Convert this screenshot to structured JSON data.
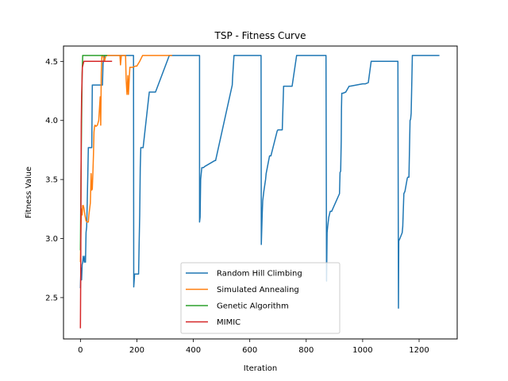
{
  "chart_data": {
    "type": "line",
    "title": "TSP - Fitness Curve",
    "xlabel": "Iteration",
    "ylabel": "Fitness Value",
    "xlim": [
      -60,
      1335
    ],
    "ylim": [
      2.15,
      4.63
    ],
    "xticks": [
      0,
      200,
      400,
      600,
      800,
      1000,
      1200
    ],
    "yticks": [
      2.5,
      3.0,
      3.5,
      4.0,
      4.5
    ],
    "xtick_labels": [
      "0",
      "200",
      "400",
      "600",
      "800",
      "1000",
      "1200"
    ],
    "ytick_labels": [
      "2.5",
      "3.0",
      "3.5",
      "4.0",
      "4.5"
    ],
    "grid": false,
    "legend_position": "lower center",
    "series": [
      {
        "name": "Random Hill Climbing",
        "color": "#1f77b4",
        "x": [
          0,
          2,
          4,
          6,
          8,
          10,
          14,
          16,
          18,
          20,
          22,
          24,
          28,
          35,
          40,
          42,
          55,
          58,
          70,
          72,
          75,
          78,
          80,
          85,
          120,
          150,
          188,
          189,
          192,
          195,
          200,
          206,
          208,
          210,
          212,
          214,
          216,
          218,
          222,
          242,
          244,
          260,
          264,
          266,
          315,
          317,
          422,
          422,
          424,
          426,
          430,
          436,
          440,
          476,
          479,
          538,
          539,
          544,
          546,
          550,
          640,
          641,
          644,
          646,
          650,
          656,
          658,
          670,
          675,
          697,
          700,
          715,
          720,
          730,
          733,
          750,
          766,
          770,
          776,
          778,
          790,
          810,
          850,
          870,
          872,
          874,
          876,
          880,
          882,
          885,
          888,
          890,
          918,
          920,
          922,
          924,
          925,
          926,
          930,
          940,
          952,
          955,
          1000,
          1010,
          1020,
          1030,
          1050,
          1100,
          1125,
          1127,
          1128,
          1130,
          1132,
          1140,
          1142,
          1146,
          1150,
          1158,
          1160,
          1164,
          1168,
          1170,
          1172,
          1176,
          1272
        ],
        "y": [
          2.58,
          2.75,
          2.65,
          2.78,
          2.8,
          2.85,
          2.8,
          2.85,
          2.8,
          3.05,
          3.1,
          3.3,
          3.77,
          3.77,
          3.77,
          4.3,
          4.3,
          4.3,
          4.3,
          4.3,
          4.3,
          4.3,
          4.48,
          4.55,
          4.55,
          4.55,
          4.55,
          2.59,
          2.7,
          2.7,
          2.7,
          2.7,
          2.96,
          3.2,
          3.6,
          3.77,
          3.77,
          3.77,
          3.77,
          4.2,
          4.24,
          4.24,
          4.24,
          4.24,
          4.55,
          4.55,
          4.55,
          3.14,
          3.18,
          3.5,
          3.6,
          3.6,
          3.61,
          3.66,
          3.66,
          4.3,
          4.36,
          4.55,
          4.55,
          4.55,
          4.55,
          2.95,
          3.2,
          3.32,
          3.4,
          3.5,
          3.55,
          3.7,
          3.7,
          3.91,
          3.92,
          3.92,
          4.29,
          4.29,
          4.29,
          4.29,
          4.55,
          4.55,
          4.55,
          4.55,
          4.55,
          4.55,
          4.55,
          4.55,
          2.64,
          3.05,
          3.1,
          3.18,
          3.2,
          3.23,
          3.23,
          3.23,
          3.38,
          3.56,
          3.57,
          3.83,
          4.1,
          4.23,
          4.23,
          4.24,
          4.29,
          4.29,
          4.31,
          4.31,
          4.32,
          4.5,
          4.5,
          4.5,
          4.5,
          2.41,
          2.98,
          2.99,
          3.0,
          3.05,
          3.1,
          3.38,
          3.4,
          3.51,
          3.52,
          3.52,
          4.0,
          4.01,
          4.06,
          4.55,
          4.55
        ]
      },
      {
        "name": "Simulated Annealing",
        "color": "#ff7f0e",
        "x": [
          0,
          2,
          4,
          6,
          8,
          10,
          12,
          16,
          20,
          24,
          28,
          30,
          35,
          38,
          40,
          42,
          44,
          46,
          48,
          50,
          52,
          55,
          60,
          65,
          70,
          72,
          74,
          76,
          78,
          80,
          85,
          90,
          95,
          100,
          110,
          120,
          140,
          142,
          145,
          150,
          158,
          160,
          162,
          165,
          168,
          170,
          175,
          185,
          195,
          200,
          210,
          220,
          230,
          325
        ],
        "y": [
          2.8,
          3.1,
          3.25,
          3.2,
          3.28,
          3.28,
          3.26,
          3.2,
          3.15,
          3.14,
          3.14,
          3.2,
          3.3,
          3.55,
          3.41,
          3.42,
          3.55,
          3.7,
          3.9,
          3.95,
          3.96,
          3.95,
          3.96,
          4.0,
          4.2,
          3.96,
          4.4,
          4.55,
          4.55,
          4.55,
          4.5,
          4.55,
          4.55,
          4.55,
          4.55,
          4.55,
          4.55,
          4.47,
          4.55,
          4.55,
          4.55,
          4.55,
          4.35,
          4.22,
          4.38,
          4.22,
          4.45,
          4.45,
          4.46,
          4.46,
          4.5,
          4.55,
          4.55,
          4.55
        ]
      },
      {
        "name": "Genetic Algorithm",
        "color": "#2ca02c",
        "x": [
          0,
          2,
          4,
          6,
          8,
          10,
          95
        ],
        "y": [
          2.9,
          3.5,
          4.0,
          4.4,
          4.55,
          4.55,
          4.55
        ]
      },
      {
        "name": "MIMIC",
        "color": "#d62728",
        "x": [
          0,
          1,
          2,
          3,
          4,
          5,
          7,
          10,
          12,
          60,
          112
        ],
        "y": [
          2.24,
          2.7,
          3.3,
          3.98,
          4.2,
          4.28,
          4.45,
          4.48,
          4.5,
          4.5,
          4.5
        ]
      }
    ]
  }
}
